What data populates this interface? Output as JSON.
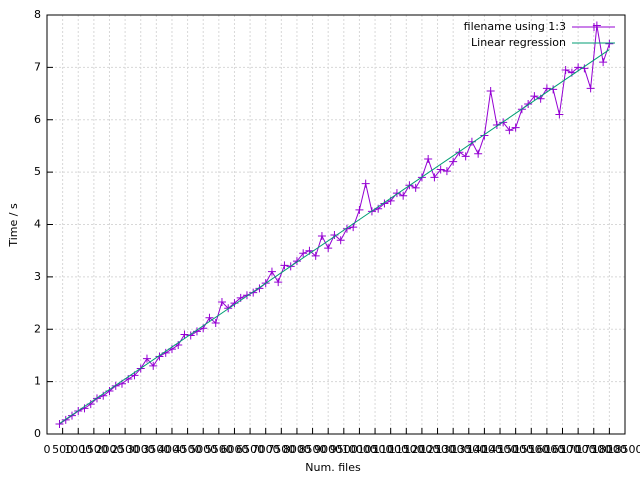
{
  "chart_data": {
    "type": "line",
    "xlabel": "Num. files",
    "ylabel": "Time / s",
    "xlim": [
      0,
      18500
    ],
    "ylim": [
      0,
      8
    ],
    "xticks": [
      0,
      500,
      1000,
      1500,
      2000,
      2500,
      3000,
      3500,
      4000,
      4500,
      5000,
      5500,
      6000,
      6500,
      7000,
      7500,
      8000,
      8500,
      9000,
      9500,
      10000,
      10500,
      11000,
      11500,
      12000,
      12500,
      13000,
      13500,
      14000,
      14500,
      15000,
      15500,
      16000,
      16500,
      17000,
      17500,
      18000,
      18500
    ],
    "yticks": [
      0,
      1,
      2,
      3,
      4,
      5,
      6,
      7,
      8
    ],
    "grid": true,
    "legend": "top-right",
    "series": [
      {
        "name": "filename using 1:3",
        "color": "#9400d3",
        "markers": true,
        "x": [
          400,
          600,
          800,
          1000,
          1200,
          1400,
          1600,
          1800,
          2000,
          2200,
          2400,
          2600,
          2800,
          3000,
          3200,
          3400,
          3600,
          3800,
          4000,
          4200,
          4400,
          4600,
          4800,
          5000,
          5200,
          5400,
          5600,
          5800,
          6000,
          6200,
          6400,
          6600,
          6800,
          7000,
          7200,
          7400,
          7600,
          7800,
          8000,
          8200,
          8400,
          8600,
          8800,
          9000,
          9200,
          9400,
          9600,
          9800,
          10000,
          10200,
          10400,
          10600,
          10800,
          11000,
          11200,
          11400,
          11600,
          11800,
          12000,
          12200,
          12400,
          12600,
          12800,
          13000,
          13200,
          13400,
          13600,
          13800,
          14000,
          14200,
          14400,
          14600,
          14800,
          15000,
          15200,
          15400,
          15600,
          15800,
          16000,
          16200,
          16400,
          16600,
          16800,
          17000,
          17200,
          17400,
          17600,
          17800,
          18000
        ],
        "values": [
          0.19,
          0.27,
          0.35,
          0.44,
          0.49,
          0.57,
          0.68,
          0.73,
          0.82,
          0.92,
          0.96,
          1.05,
          1.12,
          1.25,
          1.44,
          1.3,
          1.48,
          1.55,
          1.62,
          1.7,
          1.9,
          1.88,
          1.96,
          2.02,
          2.22,
          2.12,
          2.52,
          2.4,
          2.5,
          2.6,
          2.65,
          2.7,
          2.78,
          2.88,
          3.1,
          2.9,
          3.22,
          3.2,
          3.3,
          3.45,
          3.5,
          3.4,
          3.78,
          3.55,
          3.8,
          3.7,
          3.92,
          3.95,
          4.28,
          4.78,
          4.25,
          4.3,
          4.4,
          4.45,
          4.6,
          4.55,
          4.75,
          4.7,
          4.9,
          5.25,
          4.9,
          5.05,
          5.02,
          5.2,
          5.38,
          5.3,
          5.58,
          5.35,
          5.7,
          6.55,
          5.9,
          5.95,
          5.8,
          5.85,
          6.2,
          6.3,
          6.45,
          6.4,
          6.6,
          6.58,
          6.1,
          6.95,
          6.9,
          7.0,
          6.98,
          6.6,
          7.8,
          7.1,
          7.45
        ]
      },
      {
        "name": "Linear regression",
        "color": "#009e73",
        "markers": false,
        "x": [
          400,
          18000
        ],
        "values": [
          0.2,
          7.34
        ]
      }
    ]
  }
}
